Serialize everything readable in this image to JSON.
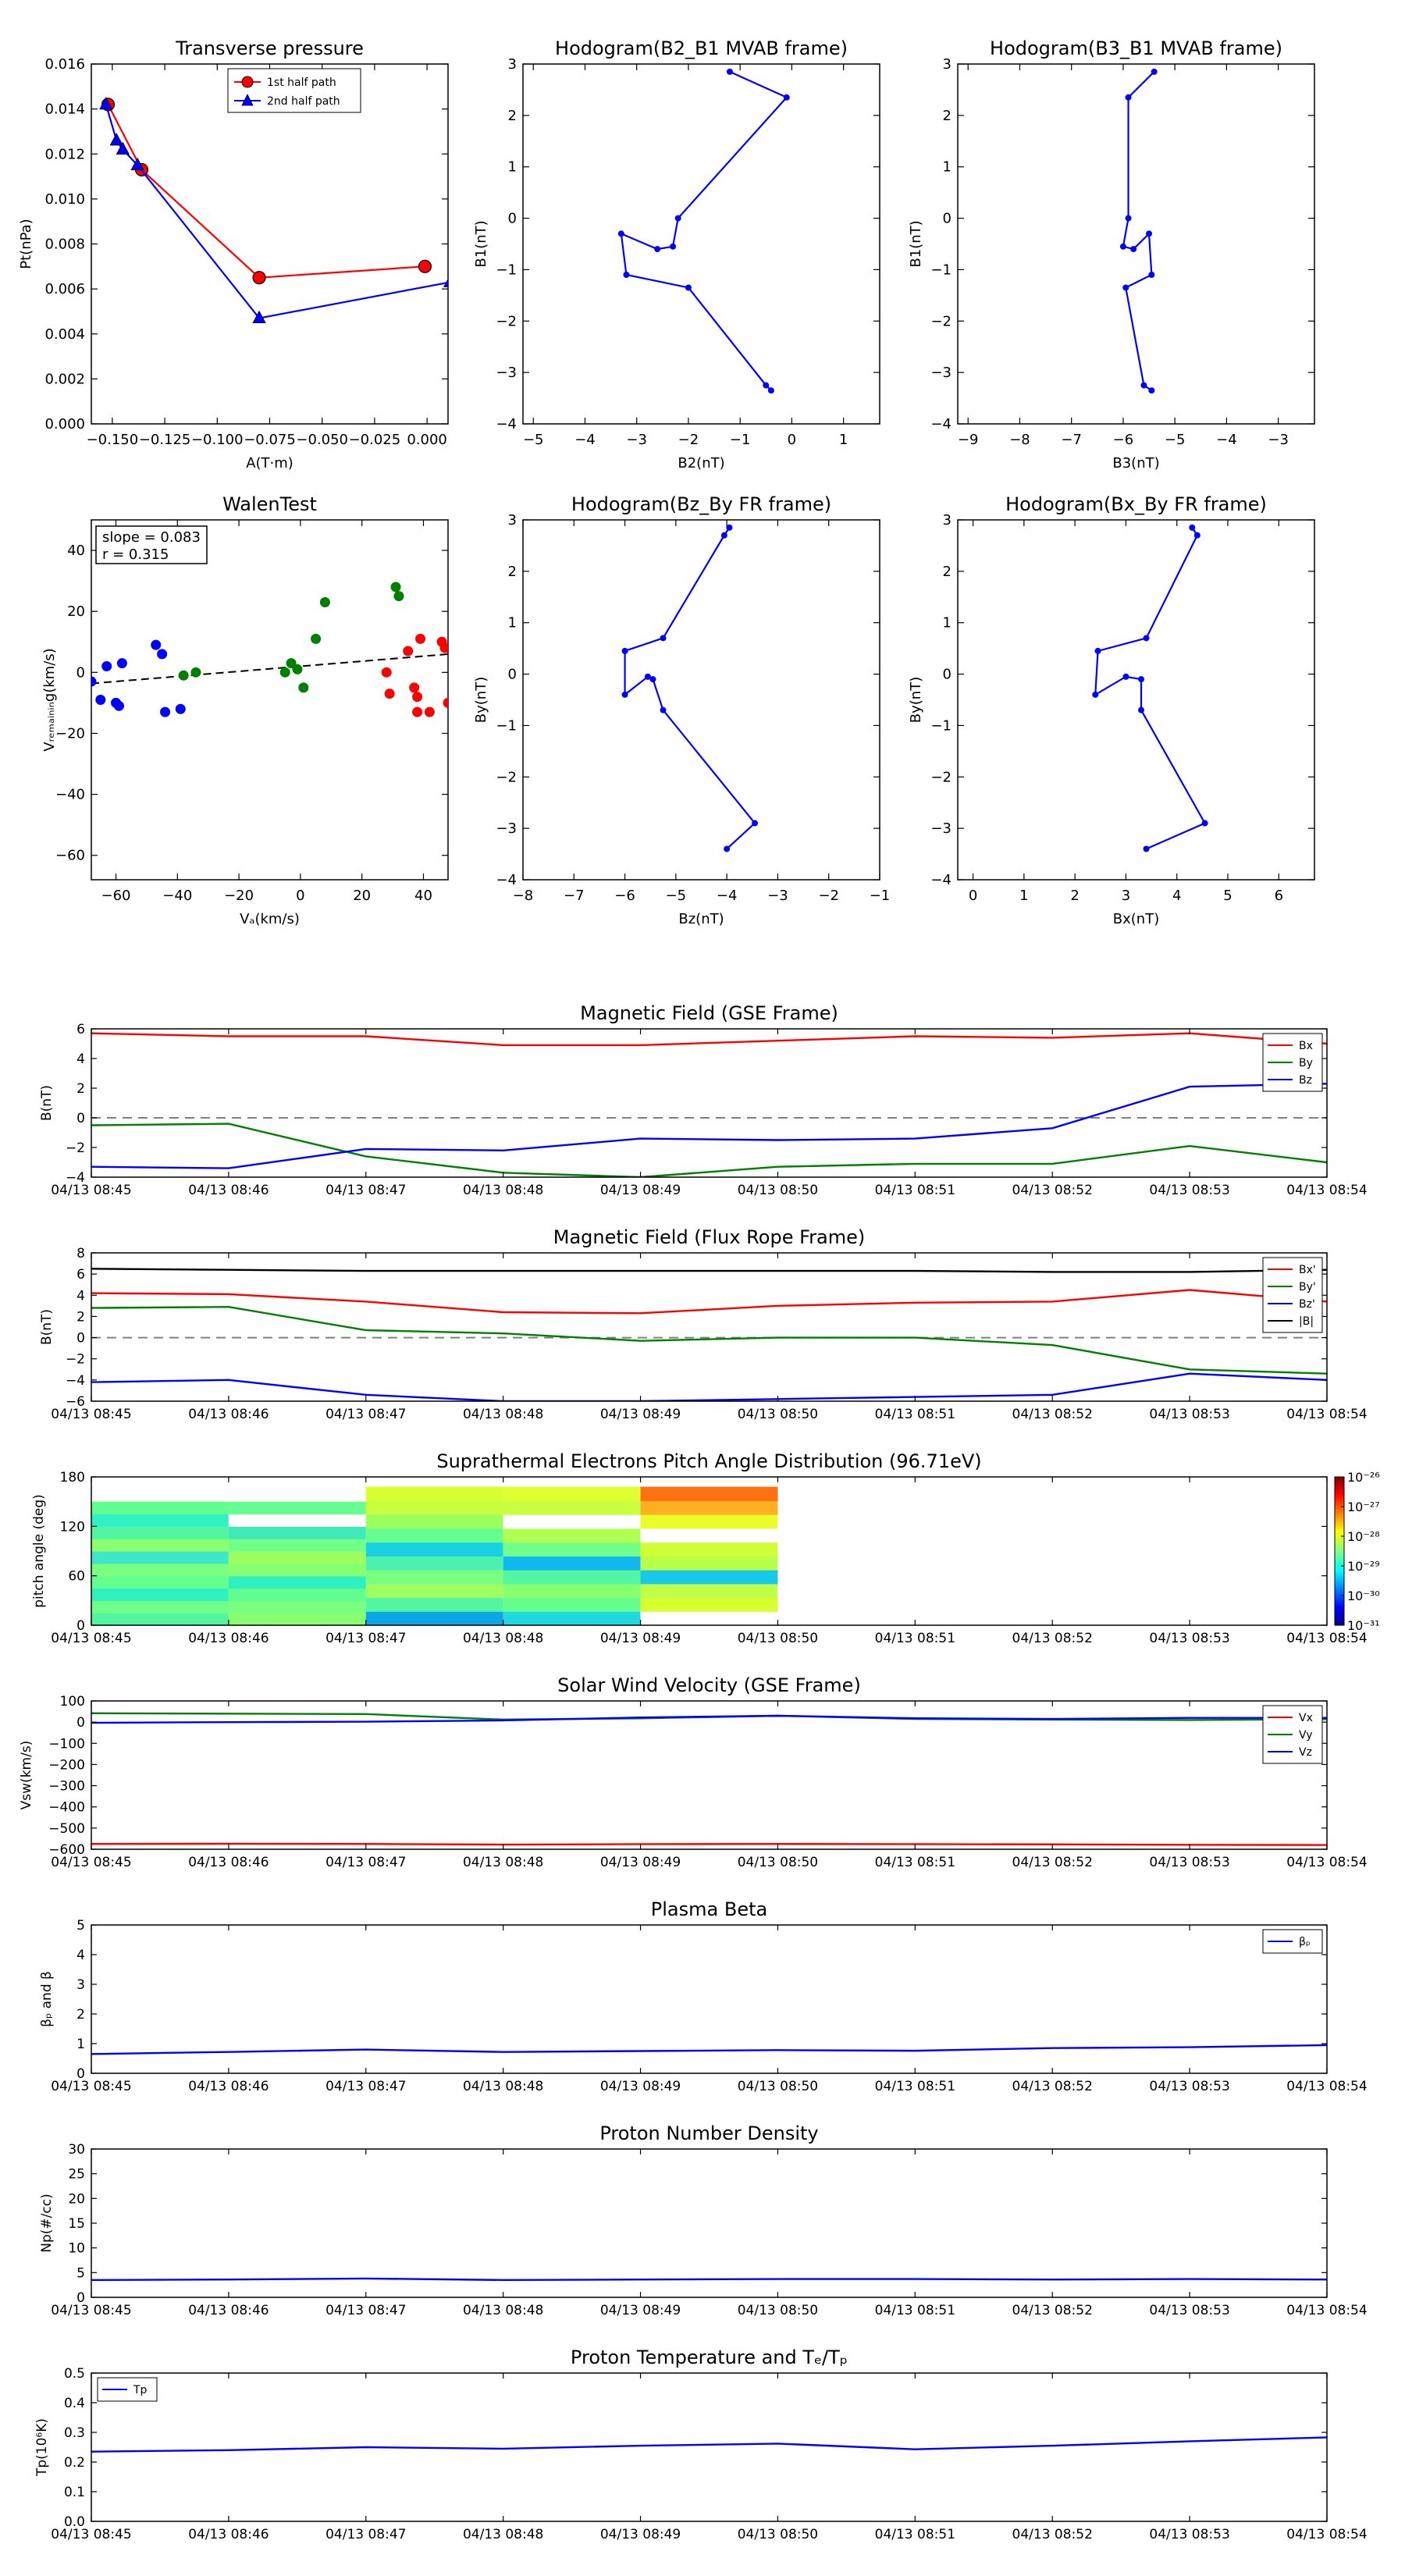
{
  "colors": {
    "red": "#ff0000",
    "green": "#008000",
    "blue": "#0000ff",
    "black": "#000000",
    "gray": "#808080"
  },
  "chart_data": [
    {
      "id": "tp",
      "type": "line",
      "title": "Transverse pressure",
      "xlabel": "A(T·m)",
      "ylabel": "Pt(nPa)",
      "xlim": [
        -0.16,
        0.01
      ],
      "ylim": [
        0,
        0.016
      ],
      "xticks": [
        -0.15,
        -0.125,
        -0.1,
        -0.075,
        -0.05,
        -0.025,
        0.0
      ],
      "xticklabels": [
        "−0.150",
        "−0.125",
        "−0.100",
        "−0.075",
        "−0.050",
        "−0.025",
        "0.000"
      ],
      "yticks": [
        0,
        0.002,
        0.004,
        0.006,
        0.008,
        0.01,
        0.012,
        0.014,
        0.016
      ],
      "yticklabels": [
        "0.000",
        "0.002",
        "0.004",
        "0.006",
        "0.008",
        "0.010",
        "0.012",
        "0.014",
        "0.016"
      ],
      "legend": {
        "position": "top-center",
        "entries": [
          "1st half path",
          "2nd half path"
        ]
      },
      "series": [
        {
          "name": "1st half path",
          "color": "#ff0000",
          "marker": "circle",
          "x": [
            -0.152,
            -0.136,
            -0.08,
            -0.001
          ],
          "y": [
            0.0142,
            0.0113,
            0.0065,
            0.007
          ]
        },
        {
          "name": "2nd half path",
          "color": "#0000ff",
          "marker": "triangle",
          "x": [
            -0.153,
            -0.148,
            -0.145,
            -0.138,
            -0.08,
            0.011
          ],
          "y": [
            0.0142,
            0.0126,
            0.0122,
            0.0115,
            0.0047,
            0.0063
          ]
        }
      ]
    },
    {
      "id": "h1",
      "type": "line",
      "title": "Hodogram(B2_B1 MVAB frame)",
      "xlabel": "B2(nT)",
      "ylabel": "B1(nT)",
      "xlim": [
        -5.2,
        1.7
      ],
      "ylim": [
        -4,
        3
      ],
      "xticks": [
        -5,
        -4,
        -3,
        -2,
        -1,
        0,
        1
      ],
      "yticks": [
        -4,
        -3,
        -2,
        -1,
        0,
        1,
        2,
        3
      ],
      "series": [
        {
          "name": "hodogram",
          "color": "#0000ff",
          "marker": "dot",
          "x": [
            -1.2,
            -0.1,
            -2.2,
            -2.3,
            -2.6,
            -3.3,
            -3.2,
            -2.0,
            -0.5,
            -0.4
          ],
          "y": [
            2.85,
            2.35,
            0.0,
            -0.55,
            -0.6,
            -0.3,
            -1.1,
            -1.35,
            -3.25,
            -3.35
          ]
        }
      ]
    },
    {
      "id": "h2",
      "type": "line",
      "title": "Hodogram(B3_B1 MVAB frame)",
      "xlabel": "B3(nT)",
      "ylabel": "B1(nT)",
      "xlim": [
        -9.2,
        -2.3
      ],
      "ylim": [
        -4,
        3
      ],
      "xticks": [
        -9,
        -8,
        -7,
        -6,
        -5,
        -4,
        -3
      ],
      "yticks": [
        -4,
        -3,
        -2,
        -1,
        0,
        1,
        2,
        3
      ],
      "series": [
        {
          "name": "hodogram",
          "color": "#0000ff",
          "marker": "dot",
          "x": [
            -5.4,
            -5.9,
            -5.9,
            -6.0,
            -5.8,
            -5.5,
            -5.45,
            -5.95,
            -5.6,
            -5.45
          ],
          "y": [
            2.85,
            2.35,
            0.0,
            -0.55,
            -0.6,
            -0.3,
            -1.1,
            -1.35,
            -3.25,
            -3.35
          ]
        }
      ]
    },
    {
      "id": "walen",
      "type": "scatter",
      "title": "WalenTest",
      "xlabel": "Vₐ(km/s)",
      "ylabel": "Vᵣₑₘₐᵢₙᵢₙg(km/s)",
      "xlim": [
        -68,
        48
      ],
      "ylim": [
        -68,
        50
      ],
      "xticks": [
        -60,
        -40,
        -20,
        0,
        20,
        40
      ],
      "yticks": [
        -60,
        -40,
        -20,
        0,
        20,
        40
      ],
      "annotation": [
        "slope = 0.083",
        "r = 0.315"
      ],
      "fit": {
        "slope": 0.083,
        "intercept": 2.0
      },
      "series": [
        {
          "name": "blue",
          "color": "#0000ff",
          "x": [
            -68,
            -63,
            -60,
            -59,
            -58,
            -47,
            -45,
            -44,
            -39,
            -65
          ],
          "y": [
            -3,
            2,
            -10,
            -11,
            3,
            9,
            6,
            -13,
            -12,
            -9
          ]
        },
        {
          "name": "green",
          "color": "#008000",
          "x": [
            -38,
            -34,
            -5,
            -3,
            -1,
            1,
            5,
            8,
            31,
            32
          ],
          "y": [
            -1,
            0,
            0,
            3,
            1,
            -5,
            11,
            23,
            28,
            25
          ]
        },
        {
          "name": "red",
          "color": "#ff0000",
          "x": [
            28,
            29,
            35,
            37,
            38,
            38,
            39,
            42,
            46,
            47,
            48
          ],
          "y": [
            0,
            -7,
            7,
            -5,
            -8,
            -13,
            11,
            -13,
            10,
            8,
            -10
          ]
        }
      ]
    },
    {
      "id": "h3",
      "type": "line",
      "title": "Hodogram(Bz_By FR frame)",
      "xlabel": "Bz(nT)",
      "ylabel": "By(nT)",
      "xlim": [
        -8,
        -1
      ],
      "ylim": [
        -4,
        3
      ],
      "xticks": [
        -8,
        -7,
        -6,
        -5,
        -4,
        -3,
        -2,
        -1
      ],
      "yticks": [
        -4,
        -3,
        -2,
        -1,
        0,
        1,
        2,
        3
      ],
      "series": [
        {
          "name": "hodogram",
          "color": "#0000ff",
          "marker": "dot",
          "x": [
            -3.95,
            -4.05,
            -5.25,
            -6.0,
            -6.0,
            -5.55,
            -5.45,
            -5.25,
            -3.45,
            -4.0
          ],
          "y": [
            2.85,
            2.7,
            0.7,
            0.45,
            -0.4,
            -0.05,
            -0.1,
            -0.7,
            -2.9,
            -3.4
          ]
        }
      ]
    },
    {
      "id": "h4",
      "type": "line",
      "title": "Hodogram(Bx_By FR frame)",
      "xlabel": "Bx(nT)",
      "ylabel": "By(nT)",
      "xlim": [
        -0.3,
        6.7
      ],
      "ylim": [
        -4,
        3
      ],
      "xticks": [
        0,
        1,
        2,
        3,
        4,
        5,
        6
      ],
      "yticks": [
        -4,
        -3,
        -2,
        -1,
        0,
        1,
        2,
        3
      ],
      "series": [
        {
          "name": "hodogram",
          "color": "#0000ff",
          "marker": "dot",
          "x": [
            4.3,
            4.4,
            3.4,
            2.45,
            2.4,
            3.0,
            3.3,
            3.3,
            4.55,
            3.4
          ],
          "y": [
            2.85,
            2.7,
            0.7,
            0.45,
            -0.4,
            -0.05,
            -0.1,
            -0.7,
            -2.9,
            -3.4
          ]
        }
      ]
    },
    {
      "id": "mf_gse",
      "type": "line",
      "title": "Magnetic Field (GSE Frame)",
      "ylabel": "B(nT)",
      "ylim": [
        -4,
        6
      ],
      "yticks": [
        -4,
        -2,
        0,
        2,
        4,
        6
      ],
      "zero_line": true,
      "legend": {
        "position": "top-right",
        "entries": [
          "Bx",
          "By",
          "Bz"
        ]
      },
      "series": [
        {
          "name": "Bx",
          "color": "#ff0000",
          "values": [
            5.7,
            5.5,
            5.5,
            4.9,
            4.9,
            5.2,
            5.5,
            5.4,
            5.7,
            5.0
          ]
        },
        {
          "name": "By",
          "color": "#008000",
          "values": [
            -0.5,
            -0.4,
            -2.6,
            -3.7,
            -4.0,
            -3.3,
            -3.1,
            -3.1,
            -1.9,
            -3.0
          ]
        },
        {
          "name": "Bz",
          "color": "#0000ff",
          "values": [
            -3.3,
            -3.4,
            -2.1,
            -2.2,
            -1.4,
            -1.5,
            -1.4,
            -0.7,
            2.1,
            2.3
          ]
        }
      ]
    },
    {
      "id": "mf_fr",
      "type": "line",
      "title": "Magnetic Field (Flux Rope Frame)",
      "ylabel": "B(nT)",
      "ylim": [
        -6,
        8
      ],
      "yticks": [
        -6,
        -4,
        -2,
        0,
        2,
        4,
        6,
        8
      ],
      "zero_line": true,
      "legend": {
        "position": "top-right",
        "entries": [
          "Bx'",
          "By'",
          "Bz'",
          "|B|"
        ]
      },
      "series": [
        {
          "name": "Bx'",
          "color": "#ff0000",
          "values": [
            4.2,
            4.1,
            3.4,
            2.4,
            2.3,
            3.0,
            3.3,
            3.4,
            4.5,
            3.4
          ]
        },
        {
          "name": "By'",
          "color": "#008000",
          "values": [
            2.8,
            2.9,
            0.7,
            0.4,
            -0.3,
            0.0,
            0.0,
            -0.7,
            -3.0,
            -3.4
          ]
        },
        {
          "name": "Bz'",
          "color": "#0000ff",
          "values": [
            -4.2,
            -4.0,
            -5.4,
            -6.0,
            -6.0,
            -5.8,
            -5.6,
            -5.4,
            -3.4,
            -4.0
          ]
        },
        {
          "name": "|B|",
          "color": "#000000",
          "values": [
            6.5,
            6.4,
            6.3,
            6.3,
            6.3,
            6.3,
            6.3,
            6.2,
            6.2,
            6.4
          ]
        }
      ]
    },
    {
      "id": "pad",
      "type": "heatmap",
      "title": "Suprathermal Electrons Pitch Angle Distribution (96.71eV)",
      "ylabel": "pitch angle (deg)",
      "ylim": [
        0,
        180
      ],
      "yticks": [
        0,
        60,
        120,
        180
      ],
      "colorbar": {
        "ticks": [
          "10⁻²⁶",
          "10⁻²⁷",
          "10⁻²⁸",
          "10⁻²⁹",
          "10⁻³⁰",
          "10⁻³¹"
        ]
      },
      "columns": [
        {
          "t0": 0,
          "t1": 1,
          "ymax": 150,
          "colors": [
            "#52f5a0",
            "#70ff88",
            "#2ef0c0",
            "#66ff8f",
            "#7aff80",
            "#3ce8c8",
            "#8cff70",
            "#52f5a0",
            "#30f0c5",
            "#60ff90"
          ]
        },
        {
          "t0": 1,
          "t1": 2,
          "ymax": 150,
          "colors": [
            "#88ff70",
            "#7aff80",
            "#60ff90",
            "#2ef0c0",
            "#88ff70",
            "#9cff60",
            "#70ff88",
            "#40eab8",
            "#ffffff",
            "#66ff8f"
          ]
        },
        {
          "t0": 2,
          "t1": 3,
          "ymax": 168,
          "colors": [
            "#0aa6e8",
            "#52f5a0",
            "#a0ff60",
            "#7aff80",
            "#4cf0b0",
            "#18d0e0",
            "#66ff8f",
            "#9cff60",
            "#c8ff40",
            "#d8ff30"
          ]
        },
        {
          "t0": 3,
          "t1": 4,
          "ymax": 168,
          "colors": [
            "#20d8e0",
            "#66ff8f",
            "#88ff70",
            "#52f5a0",
            "#10b8f0",
            "#70ff88",
            "#b0ff50",
            "#ffffff",
            "#c8ff40",
            "#e0ff30"
          ]
        },
        {
          "t0": 4,
          "t1": 5,
          "ymax": 168,
          "colors": [
            "#ffffff",
            "#d8ff30",
            "#c0ff48",
            "#18c8e8",
            "#b8ff48",
            "#d0ff38",
            "#ffffff",
            "#e8ff28",
            "#ffb020",
            "#ff7010"
          ]
        }
      ]
    },
    {
      "id": "vsw",
      "type": "line",
      "title": "Solar Wind Velocity (GSE Frame)",
      "ylabel": "Vsw(km/s)",
      "ylim": [
        -600,
        100
      ],
      "yticks": [
        -600,
        -500,
        -400,
        -300,
        -200,
        -100,
        0,
        100
      ],
      "yticklabels": [
        "−600",
        "−500",
        "−400",
        "−300",
        "−200",
        "−100",
        "0",
        "100"
      ],
      "legend": {
        "position": "top-right",
        "entries": [
          "Vx",
          "Vy",
          "Vz"
        ]
      },
      "series": [
        {
          "name": "Vx",
          "color": "#ff0000",
          "values": [
            -575,
            -574,
            -575,
            -578,
            -576,
            -575,
            -576,
            -577,
            -579,
            -580
          ]
        },
        {
          "name": "Vy",
          "color": "#008000",
          "values": [
            42,
            40,
            38,
            12,
            18,
            30,
            15,
            12,
            10,
            14
          ]
        },
        {
          "name": "Vz",
          "color": "#0000ff",
          "values": [
            -3,
            0,
            2,
            8,
            22,
            30,
            18,
            15,
            20,
            20
          ]
        }
      ]
    },
    {
      "id": "beta",
      "type": "line",
      "title": "Plasma Beta",
      "ylabel": "βₚ and β",
      "ylim": [
        0,
        5
      ],
      "yticks": [
        0,
        1,
        2,
        3,
        4,
        5
      ],
      "legend": {
        "position": "top-right",
        "entries": [
          "βₚ"
        ]
      },
      "series": [
        {
          "name": "βₚ",
          "color": "#0000ff",
          "values": [
            0.65,
            0.72,
            0.8,
            0.72,
            0.75,
            0.78,
            0.76,
            0.85,
            0.88,
            0.95
          ]
        }
      ]
    },
    {
      "id": "np",
      "type": "line",
      "title": "Proton Number Density",
      "ylabel": "Np(#/cc)",
      "ylim": [
        0,
        30
      ],
      "yticks": [
        0,
        5,
        10,
        15,
        20,
        25,
        30
      ],
      "series": [
        {
          "name": "Np",
          "color": "#0000ff",
          "values": [
            3.5,
            3.6,
            3.8,
            3.5,
            3.6,
            3.7,
            3.7,
            3.6,
            3.7,
            3.6
          ]
        }
      ]
    },
    {
      "id": "tp2",
      "type": "line",
      "title": "Proton Temperature and Tₑ/Tₚ",
      "ylabel": "Tp(10⁶K)",
      "ylim": [
        0,
        0.5
      ],
      "yticks": [
        0,
        0.1,
        0.2,
        0.3,
        0.4,
        0.5
      ],
      "yticklabels": [
        "0.0",
        "0.1",
        "0.2",
        "0.3",
        "0.4",
        "0.5"
      ],
      "legend": {
        "position": "top-left",
        "entries": [
          "Tp"
        ]
      },
      "series": [
        {
          "name": "Tp",
          "color": "#0000ff",
          "values": [
            0.235,
            0.24,
            0.25,
            0.245,
            0.255,
            0.262,
            0.243,
            0.255,
            0.27,
            0.283
          ]
        }
      ]
    }
  ],
  "time_axis": {
    "ticks": [
      "04/13 08:45",
      "04/13 08:46",
      "04/13 08:47",
      "04/13 08:48",
      "04/13 08:49",
      "04/13 08:50",
      "04/13 08:51",
      "04/13 08:52",
      "04/13 08:53",
      "04/13 08:54"
    ]
  }
}
